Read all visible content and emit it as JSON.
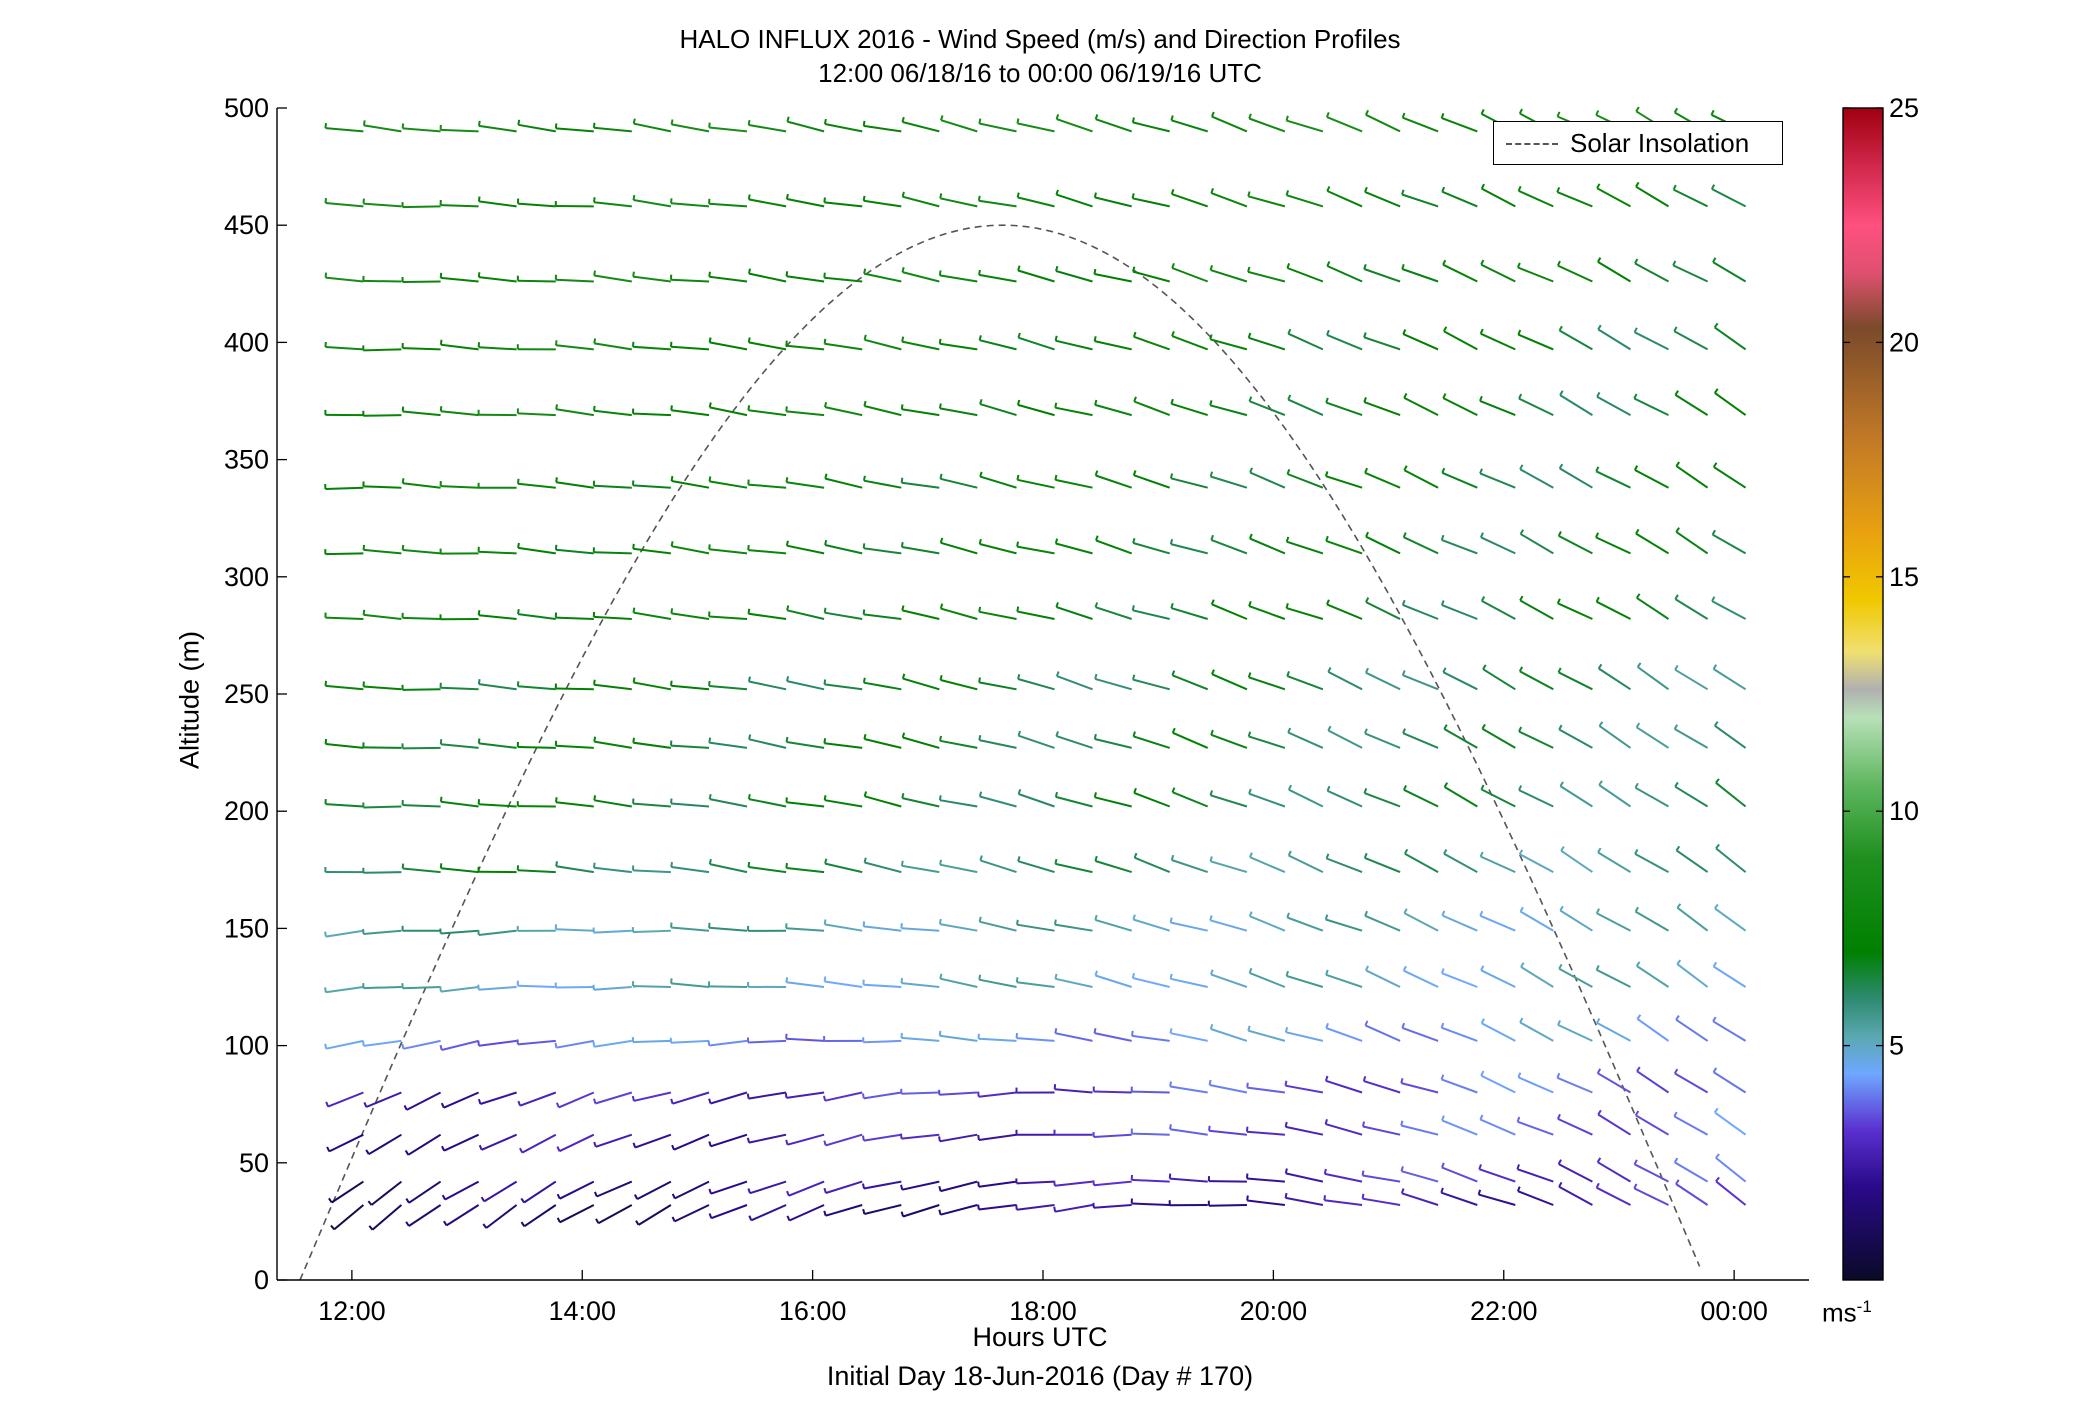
{
  "chart_data": {
    "type": "wind-barb-profile",
    "title": "HALO INFLUX 2016 - Wind Speed (m/s) and Direction Profiles",
    "subtitle": "12:00 06/18/16 to 00:00 06/19/16  UTC",
    "xlabel": "Hours UTC",
    "xlabel2": "Initial Day 18-Jun-2016 (Day # 170)",
    "ylabel": "Altitude (m)",
    "xlim_hours": [
      11.35,
      24.65
    ],
    "ylim": [
      0,
      500
    ],
    "x_ticks": [
      {
        "hour": 12,
        "label": "12:00"
      },
      {
        "hour": 14,
        "label": "14:00"
      },
      {
        "hour": 16,
        "label": "16:00"
      },
      {
        "hour": 18,
        "label": "18:00"
      },
      {
        "hour": 20,
        "label": "20:00"
      },
      {
        "hour": 22,
        "label": "22:00"
      },
      {
        "hour": 24,
        "label": "00:00"
      }
    ],
    "y_ticks": [
      0,
      50,
      100,
      150,
      200,
      250,
      300,
      350,
      400,
      450,
      500
    ],
    "colorbar": {
      "min": 0,
      "max": 25,
      "ticks": [
        5,
        10,
        15,
        20,
        25
      ],
      "unit_label": "ms",
      "unit_exponent": "-1",
      "stops": [
        {
          "v": 0,
          "color": "#0a0a28"
        },
        {
          "v": 2,
          "color": "#2a0a8a"
        },
        {
          "v": 3.2,
          "color": "#5a30d0"
        },
        {
          "v": 4.4,
          "color": "#6fa8ff"
        },
        {
          "v": 5.2,
          "color": "#5aa8b0"
        },
        {
          "v": 6,
          "color": "#2e8a70"
        },
        {
          "v": 7,
          "color": "#008000"
        },
        {
          "v": 9,
          "color": "#1f8f1f"
        },
        {
          "v": 10.5,
          "color": "#5cb55c"
        },
        {
          "v": 12,
          "color": "#b8e0b8"
        },
        {
          "v": 12.6,
          "color": "#b0b0b0"
        },
        {
          "v": 13.4,
          "color": "#f0e070"
        },
        {
          "v": 14.5,
          "color": "#f0c800"
        },
        {
          "v": 16,
          "color": "#e8a010"
        },
        {
          "v": 18,
          "color": "#c07828"
        },
        {
          "v": 20.3,
          "color": "#7a4a2a"
        },
        {
          "v": 21.5,
          "color": "#e05070"
        },
        {
          "v": 22.5,
          "color": "#ff5080"
        },
        {
          "v": 24,
          "color": "#c82040"
        },
        {
          "v": 25,
          "color": "#a00010"
        }
      ]
    },
    "solar_insolation": {
      "label": "Solar Insolation",
      "peak_hour": 17.65,
      "half_width_hours": 6.1,
      "peak_altitude": 450,
      "x_start": 11.35,
      "x_end": 24.65
    },
    "legend": {
      "entries": [
        "Solar Insolation"
      ],
      "position": "top-right"
    },
    "barb_times": [
      12.1,
      12.43,
      12.77,
      13.1,
      13.43,
      13.77,
      14.1,
      14.43,
      14.77,
      15.1,
      15.43,
      15.77,
      16.1,
      16.43,
      16.77,
      17.1,
      17.43,
      17.77,
      18.1,
      18.43,
      18.77,
      19.1,
      19.43,
      19.77,
      20.1,
      20.43,
      20.77,
      21.1,
      21.43,
      21.77,
      22.1,
      22.43,
      22.77,
      23.1,
      23.43,
      23.77,
      24.1
    ],
    "levels": [
      {
        "alt": 490,
        "dir_start": 275,
        "dir_end": 300,
        "speed_start": 8,
        "speed_end": 8
      },
      {
        "alt": 458,
        "dir_start": 272,
        "dir_end": 300,
        "speed_start": 8,
        "speed_end": 7
      },
      {
        "alt": 426,
        "dir_start": 272,
        "dir_end": 300,
        "speed_start": 8,
        "speed_end": 7
      },
      {
        "alt": 397,
        "dir_start": 272,
        "dir_end": 302,
        "speed_start": 8,
        "speed_end": 6.5
      },
      {
        "alt": 369,
        "dir_start": 272,
        "dir_end": 302,
        "speed_start": 8,
        "speed_end": 6.5
      },
      {
        "alt": 338,
        "dir_start": 272,
        "dir_end": 302,
        "speed_start": 7.5,
        "speed_end": 6.5
      },
      {
        "alt": 310,
        "dir_start": 272,
        "dir_end": 302,
        "speed_start": 7.5,
        "speed_end": 6.5
      },
      {
        "alt": 282,
        "dir_start": 272,
        "dir_end": 302,
        "speed_start": 7.5,
        "speed_end": 6.5
      },
      {
        "alt": 252,
        "dir_start": 272,
        "dir_end": 305,
        "speed_start": 7,
        "speed_end": 6
      },
      {
        "alt": 227,
        "dir_start": 272,
        "dir_end": 305,
        "speed_start": 7,
        "speed_end": 6
      },
      {
        "alt": 202,
        "dir_start": 272,
        "dir_end": 305,
        "speed_start": 7,
        "speed_end": 6
      },
      {
        "alt": 174,
        "dir_start": 272,
        "dir_end": 305,
        "speed_start": 6.5,
        "speed_end": 5.5
      },
      {
        "alt": 149,
        "dir_start": 265,
        "dir_end": 305,
        "speed_start": 5.5,
        "speed_end": 5
      },
      {
        "alt": 125,
        "dir_start": 265,
        "dir_end": 305,
        "speed_start": 5,
        "speed_end": 5
      },
      {
        "alt": 102,
        "dir_start": 258,
        "dir_end": 305,
        "speed_start": 4,
        "speed_end": 4.5
      },
      {
        "alt": 80,
        "dir_start": 245,
        "dir_end": 305,
        "speed_start": 2.5,
        "speed_end": 4
      },
      {
        "alt": 62,
        "dir_start": 240,
        "dir_end": 305,
        "speed_start": 2,
        "speed_end": 4
      },
      {
        "alt": 42,
        "dir_start": 235,
        "dir_end": 305,
        "speed_start": 1.5,
        "speed_end": 3.5
      },
      {
        "alt": 32,
        "dir_start": 232,
        "dir_end": 305,
        "speed_start": 1,
        "speed_end": 3
      }
    ]
  }
}
